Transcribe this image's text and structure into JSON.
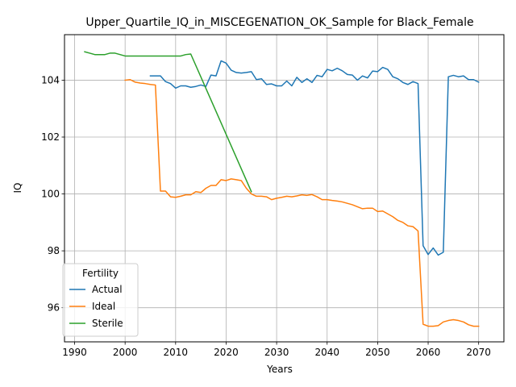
{
  "chart_data": {
    "type": "line",
    "title": "Upper_Quartile_IQ_in_MISCEGENATION_OK_Sample for Black_Female",
    "xlabel": "Years",
    "ylabel": "IQ",
    "xlim": [
      1988,
      2075
    ],
    "ylim": [
      94.8,
      105.6
    ],
    "xticks": [
      1990,
      2000,
      2010,
      2020,
      2030,
      2040,
      2050,
      2060,
      2070
    ],
    "yticks": [
      96,
      98,
      100,
      102,
      104
    ],
    "grid": true,
    "legend": {
      "title": "Fertility",
      "placement": "lower-left"
    },
    "series": [
      {
        "name": "Actual",
        "color": "#1f77b4",
        "x": [
          2005,
          2006,
          2007,
          2008,
          2009,
          2010,
          2011,
          2012,
          2013,
          2014,
          2015,
          2016,
          2017,
          2018,
          2019,
          2020,
          2021,
          2022,
          2023,
          2024,
          2025,
          2026,
          2027,
          2028,
          2029,
          2030,
          2031,
          2032,
          2033,
          2034,
          2035,
          2036,
          2037,
          2038,
          2039,
          2040,
          2041,
          2042,
          2043,
          2044,
          2045,
          2046,
          2047,
          2048,
          2049,
          2050,
          2051,
          2052,
          2053,
          2054,
          2055,
          2056,
          2057,
          2058,
          2059,
          2060,
          2061,
          2062,
          2063,
          2064,
          2065,
          2066,
          2067,
          2068,
          2069,
          2070
        ],
        "y": [
          104.15,
          104.15,
          104.15,
          103.95,
          103.88,
          103.72,
          103.8,
          103.8,
          103.75,
          103.78,
          103.83,
          103.78,
          104.18,
          104.15,
          104.68,
          104.6,
          104.35,
          104.27,
          104.25,
          104.27,
          104.3,
          104.02,
          104.05,
          103.85,
          103.87,
          103.8,
          103.8,
          103.97,
          103.8,
          104.1,
          103.92,
          104.05,
          103.92,
          104.17,
          104.12,
          104.38,
          104.33,
          104.42,
          104.33,
          104.2,
          104.18,
          104.0,
          104.15,
          104.08,
          104.32,
          104.3,
          104.45,
          104.38,
          104.12,
          104.05,
          103.92,
          103.85,
          103.95,
          103.88,
          98.18,
          97.87,
          98.1,
          97.85,
          97.95,
          104.12,
          104.17,
          104.12,
          104.15,
          104.02,
          104.02,
          103.93
        ]
      },
      {
        "name": "Ideal",
        "color": "#ff7f0e",
        "x": [
          2000,
          2001,
          2002,
          2003,
          2004,
          2005,
          2006,
          2007,
          2008,
          2009,
          2010,
          2011,
          2012,
          2013,
          2014,
          2015,
          2016,
          2017,
          2018,
          2019,
          2020,
          2021,
          2022,
          2023,
          2024,
          2025,
          2026,
          2027,
          2028,
          2029,
          2030,
          2031,
          2032,
          2033,
          2034,
          2035,
          2036,
          2037,
          2038,
          2039,
          2040,
          2041,
          2042,
          2043,
          2044,
          2045,
          2046,
          2047,
          2048,
          2049,
          2050,
          2051,
          2052,
          2053,
          2054,
          2055,
          2056,
          2057,
          2058,
          2059,
          2060,
          2061,
          2062,
          2063,
          2064,
          2065,
          2066,
          2067,
          2068,
          2069,
          2070
        ],
        "y": [
          104.0,
          104.02,
          103.93,
          103.9,
          103.88,
          103.85,
          103.83,
          100.1,
          100.1,
          99.9,
          99.88,
          99.92,
          99.97,
          99.97,
          100.08,
          100.05,
          100.2,
          100.3,
          100.3,
          100.5,
          100.47,
          100.53,
          100.5,
          100.47,
          100.2,
          100.0,
          99.92,
          99.92,
          99.9,
          99.8,
          99.85,
          99.88,
          99.92,
          99.9,
          99.93,
          99.97,
          99.95,
          99.98,
          99.9,
          99.8,
          99.8,
          99.77,
          99.75,
          99.72,
          99.67,
          99.62,
          99.55,
          99.48,
          99.5,
          99.5,
          99.38,
          99.4,
          99.3,
          99.2,
          99.07,
          99.0,
          98.88,
          98.85,
          98.7,
          95.42,
          95.35,
          95.35,
          95.37,
          95.5,
          95.55,
          95.58,
          95.55,
          95.5,
          95.4,
          95.35,
          95.35
        ]
      },
      {
        "name": "Sterile",
        "color": "#2ca02c",
        "x": [
          1992,
          1993,
          1994,
          1995,
          1996,
          1997,
          1998,
          1999,
          2000,
          2001,
          2002,
          2003,
          2004,
          2005,
          2006,
          2007,
          2008,
          2009,
          2010,
          2011,
          2012,
          2013,
          2025
        ],
        "y": [
          105.0,
          104.95,
          104.9,
          104.9,
          104.9,
          104.95,
          104.95,
          104.9,
          104.85,
          104.85,
          104.85,
          104.85,
          104.85,
          104.85,
          104.85,
          104.85,
          104.85,
          104.85,
          104.85,
          104.85,
          104.9,
          104.92,
          100.08
        ]
      }
    ]
  }
}
